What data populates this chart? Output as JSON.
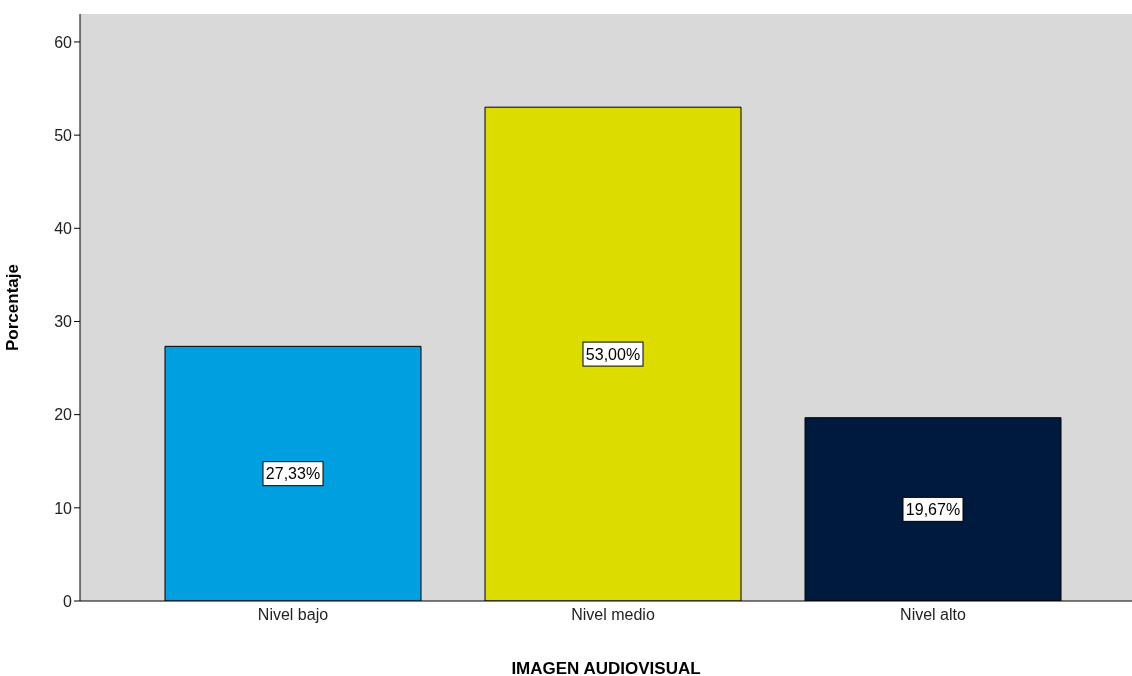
{
  "chart_data": {
    "type": "bar",
    "xlabel": "IMAGEN AUDIOVISUAL",
    "ylabel": "Porcentaje",
    "categories": [
      "Nivel bajo",
      "Nivel medio",
      "Nivel alto"
    ],
    "values": [
      27.33,
      53.0,
      19.67
    ],
    "colors": [
      "#009fdf",
      "#dcdc00",
      "#001a3d"
    ],
    "value_labels": [
      "27,33%",
      "53,00%",
      "19,67%"
    ],
    "ylim": [
      0,
      63
    ],
    "yticks": [
      0,
      10,
      20,
      30,
      40,
      50,
      60
    ],
    "grid": false,
    "legend": false
  }
}
